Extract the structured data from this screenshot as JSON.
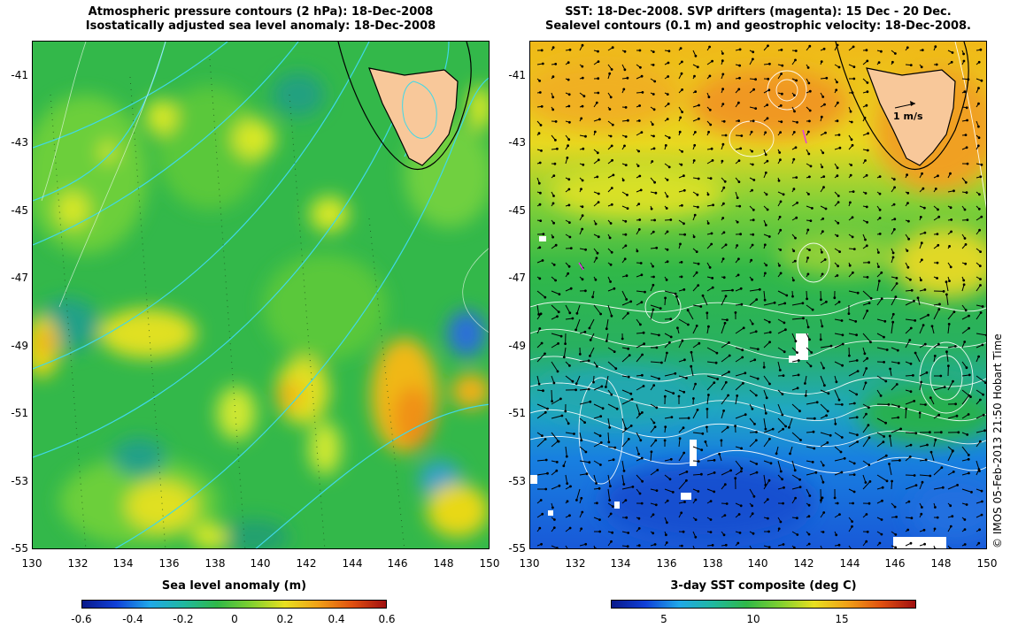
{
  "left_panel": {
    "title_line1": "Atmospheric pressure contours (2 hPa): 18-Dec-2008",
    "title_line2": "Isostatically adjusted sea level anomaly: 18-Dec-2008",
    "colorbar_title": "Sea level anomaly (m)",
    "colorbar_ticks": [
      "-0.6",
      "-0.4",
      "-0.2",
      "0",
      "0.2",
      "0.4",
      "0.6"
    ]
  },
  "right_panel": {
    "title_line1": "SST: 18-Dec-2008. SVP drifters (magenta): 15 Dec - 20 Dec.",
    "title_line2": "Sealevel contours (0.1 m) and geostrophic velocity: 18-Dec-2008.",
    "colorbar_title": "3-day SST composite (deg C)",
    "colorbar_ticks": [
      "5",
      "10",
      "15"
    ],
    "velocity_scale_label": "1 m/s"
  },
  "axes": {
    "lat_ticks": [
      "-41",
      "-43",
      "-45",
      "-47",
      "-49",
      "-51",
      "-53",
      "-55"
    ],
    "lon_ticks": [
      "130",
      "132",
      "134",
      "136",
      "138",
      "140",
      "142",
      "144",
      "146",
      "148",
      "150"
    ],
    "lon_range": [
      130,
      150
    ],
    "lat_range": [
      -40,
      -55
    ]
  },
  "copyright": "© IMOS 05-Feb-2013 21:50 Hobart Time",
  "colors": {
    "land": "#f8c89a",
    "pressure_contour": "#40d8e8",
    "sealevel_contour": "#ffffff",
    "drifter": "#e040e0"
  }
}
